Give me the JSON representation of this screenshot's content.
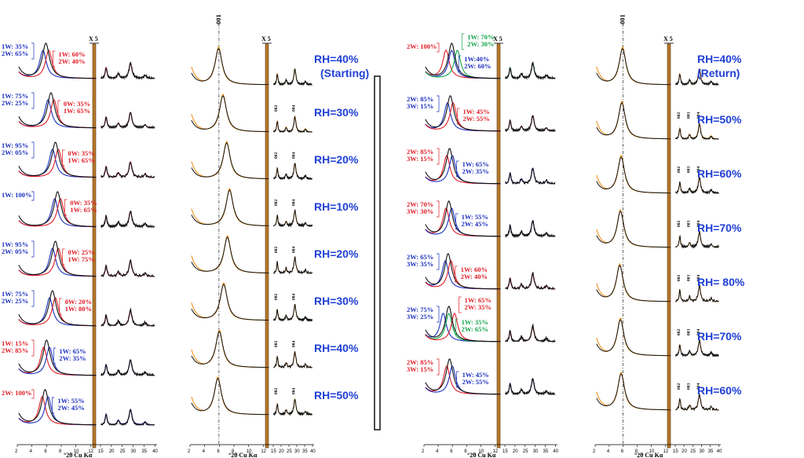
{
  "chart_data": {
    "type": "line",
    "x_unit": "°2θ Cu Kα",
    "x_ticks": [
      "2",
      "4",
      "6",
      "8",
      "10",
      "12",
      "15",
      "20",
      "25",
      "30",
      "35",
      "40"
    ],
    "zoom_label": "X 5",
    "reflection_001": "001",
    "reflections": [
      "002",
      "003",
      "004"
    ],
    "separator": true,
    "panels": [
      {
        "id": "a",
        "kind": "decomposed",
        "rows": [
          {
            "peak": 5.9,
            "labels": [
              {
                "text": "1W: 35%",
                "color": "blue"
              },
              {
                "text": "2W: 65%",
                "color": "blue"
              },
              {
                "text": "1W: 60%",
                "color": "red"
              },
              {
                "text": "2W: 40%",
                "color": "red"
              }
            ]
          },
          {
            "peak": 6.6,
            "labels": [
              {
                "text": "1W: 75%",
                "color": "blue"
              },
              {
                "text": "2W: 25%",
                "color": "blue"
              },
              {
                "text": "0W: 35%",
                "color": "red"
              },
              {
                "text": "1W: 65%",
                "color": "red"
              }
            ]
          },
          {
            "peak": 7.2,
            "labels": [
              {
                "text": "1W: 95%",
                "color": "blue"
              },
              {
                "text": "2W: 05%",
                "color": "blue"
              },
              {
                "text": "0W: 35%",
                "color": "red"
              },
              {
                "text": "1W: 65%",
                "color": "red"
              }
            ]
          },
          {
            "peak": 7.5,
            "labels": [
              {
                "text": "1W: 100%",
                "color": "blue"
              },
              {
                "text": "0W: 35%",
                "color": "red"
              },
              {
                "text": "1W: 65%",
                "color": "red"
              }
            ]
          },
          {
            "peak": 7.2,
            "labels": [
              {
                "text": "1W: 95%",
                "color": "blue"
              },
              {
                "text": "2W: 05%",
                "color": "blue"
              },
              {
                "text": "0W: 25%",
                "color": "red"
              },
              {
                "text": "1W: 75%",
                "color": "red"
              }
            ]
          },
          {
            "peak": 6.8,
            "labels": [
              {
                "text": "1W: 75%",
                "color": "blue"
              },
              {
                "text": "2W: 25%",
                "color": "blue"
              },
              {
                "text": "0W: 20%",
                "color": "red"
              },
              {
                "text": "1W: 80%",
                "color": "red"
              }
            ]
          },
          {
            "peak": 6.0,
            "labels": [
              {
                "text": "1W: 15%",
                "color": "red"
              },
              {
                "text": "2W: 85%",
                "color": "red"
              },
              {
                "text": "1W: 65%",
                "color": "blue"
              },
              {
                "text": "2W: 35%",
                "color": "blue"
              }
            ]
          },
          {
            "peak": 5.8,
            "labels": [
              {
                "text": "2W: 100%",
                "color": "red"
              },
              {
                "text": "1W: 55%",
                "color": "blue"
              },
              {
                "text": "2W: 45%",
                "color": "blue"
              }
            ]
          }
        ]
      },
      {
        "id": "b",
        "kind": "profile",
        "rows": [
          {
            "rh": "RH=40%",
            "sub": "(Starting)",
            "peak": 5.9
          },
          {
            "rh": "RH=30%",
            "peak": 6.5
          },
          {
            "rh": "RH=20%",
            "peak": 7.0
          },
          {
            "rh": "RH=10%",
            "peak": 7.4
          },
          {
            "rh": "RH=20%",
            "peak": 7.1
          },
          {
            "rh": "RH=30%",
            "peak": 6.6
          },
          {
            "rh": "RH=40%",
            "peak": 6.0
          },
          {
            "rh": "RH=50%",
            "peak": 5.8
          }
        ]
      },
      {
        "id": "c",
        "kind": "decomposed",
        "rows": [
          {
            "peak": 5.9,
            "labels": [
              {
                "text": "2W: 100%",
                "color": "red"
              },
              {
                "text": "1W:40%",
                "color": "blue"
              },
              {
                "text": "2W: 60%",
                "color": "blue"
              },
              {
                "text": "1W: 70%",
                "color": "green"
              },
              {
                "text": "2W: 30%",
                "color": "green"
              }
            ]
          },
          {
            "peak": 5.7,
            "labels": [
              {
                "text": "2W: 85%",
                "color": "blue"
              },
              {
                "text": "3W: 15%",
                "color": "blue"
              },
              {
                "text": "1W: 45%",
                "color": "red"
              },
              {
                "text": "2W: 55%",
                "color": "red"
              }
            ]
          },
          {
            "peak": 5.6,
            "labels": [
              {
                "text": "2W: 85%",
                "color": "red"
              },
              {
                "text": "3W: 15%",
                "color": "red"
              },
              {
                "text": "1W: 65%",
                "color": "blue"
              },
              {
                "text": "2W: 35%",
                "color": "blue"
              }
            ]
          },
          {
            "peak": 5.5,
            "labels": [
              {
                "text": "2W: 70%",
                "color": "red"
              },
              {
                "text": "3W: 30%",
                "color": "red"
              },
              {
                "text": "1W: 55%",
                "color": "blue"
              },
              {
                "text": "2W: 45%",
                "color": "blue"
              }
            ]
          },
          {
            "peak": 5.4,
            "labels": [
              {
                "text": "2W: 65%",
                "color": "blue"
              },
              {
                "text": "3W: 35%",
                "color": "blue"
              },
              {
                "text": "1W: 60%",
                "color": "red"
              },
              {
                "text": "2W: 40%",
                "color": "red"
              }
            ]
          },
          {
            "peak": 5.5,
            "labels": [
              {
                "text": "2W: 75%",
                "color": "blue"
              },
              {
                "text": "3W: 25%",
                "color": "blue"
              },
              {
                "text": "1W: 35%",
                "color": "green"
              },
              {
                "text": "2W: 65%",
                "color": "green"
              },
              {
                "text": "1W: 65%",
                "color": "red"
              },
              {
                "text": "2W: 35%",
                "color": "red"
              }
            ]
          },
          {
            "peak": 5.6,
            "labels": [
              {
                "text": "2W: 85%",
                "color": "red"
              },
              {
                "text": "3W: 15%",
                "color": "red"
              },
              {
                "text": "1W: 45%",
                "color": "blue"
              },
              {
                "text": "2W: 55%",
                "color": "blue"
              }
            ]
          }
        ]
      },
      {
        "id": "d",
        "kind": "profile",
        "rows": [
          {
            "rh": "RH=40%",
            "sub": "(Return)",
            "peak": 5.9
          },
          {
            "rh": "RH=50%",
            "peak": 5.8
          },
          {
            "rh": "RH=60%",
            "peak": 5.7
          },
          {
            "rh": "RH=70%",
            "peak": 5.6
          },
          {
            "rh": "RH= 80%",
            "peak": 5.5
          },
          {
            "rh": "RH=70%",
            "peak": 5.6
          },
          {
            "rh": "RH=60%",
            "peak": 5.7
          }
        ]
      }
    ]
  },
  "colors": {
    "experimental": "#111111",
    "calculated": "#f0941f",
    "comp_blue": "#1a2fbf",
    "comp_red": "#e01b24",
    "comp_green": "#12a54a",
    "comp_purple": "#9b30c8",
    "rh_text": "#1f3fd6",
    "zoom_bar": "#b7772c"
  }
}
